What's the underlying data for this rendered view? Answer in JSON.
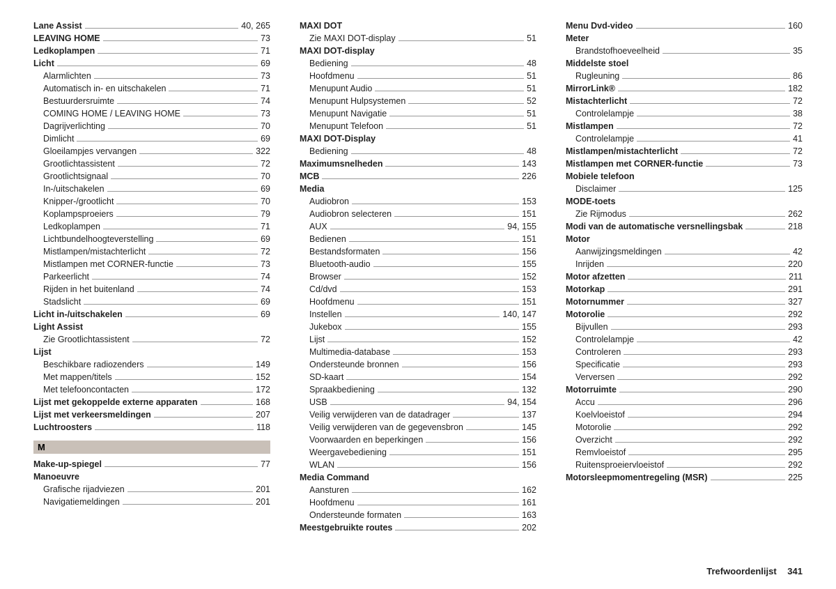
{
  "footer": {
    "title": "Trefwoordenlijst",
    "page": "341"
  },
  "section_letter": "M",
  "columns": [
    [
      {
        "t": "e",
        "l": "Lane Assist",
        "p": "40, 265",
        "b": 1
      },
      {
        "t": "e",
        "l": "LEAVING HOME",
        "p": "73",
        "b": 1
      },
      {
        "t": "e",
        "l": "Ledkoplampen",
        "p": "71",
        "b": 1
      },
      {
        "t": "e",
        "l": "Licht",
        "p": "69",
        "b": 1
      },
      {
        "t": "e",
        "l": "Alarmlichten",
        "p": "73",
        "s": 1
      },
      {
        "t": "e",
        "l": "Automatisch in- en uitschakelen",
        "p": "71",
        "s": 1
      },
      {
        "t": "e",
        "l": "Bestuurdersruimte",
        "p": "74",
        "s": 1
      },
      {
        "t": "e",
        "l": "COMING HOME / LEAVING HOME",
        "p": "73",
        "s": 1
      },
      {
        "t": "e",
        "l": "Dagrijverlichting",
        "p": "70",
        "s": 1
      },
      {
        "t": "e",
        "l": "Dimlicht",
        "p": "69",
        "s": 1
      },
      {
        "t": "e",
        "l": "Gloeilampjes vervangen",
        "p": "322",
        "s": 1
      },
      {
        "t": "e",
        "l": "Grootlichtassistent",
        "p": "72",
        "s": 1
      },
      {
        "t": "e",
        "l": "Grootlichtsignaal",
        "p": "70",
        "s": 1
      },
      {
        "t": "e",
        "l": "In-/uitschakelen",
        "p": "69",
        "s": 1
      },
      {
        "t": "e",
        "l": "Knipper-/grootlicht",
        "p": "70",
        "s": 1
      },
      {
        "t": "e",
        "l": "Koplampsproeiers",
        "p": "79",
        "s": 1
      },
      {
        "t": "e",
        "l": "Ledkoplampen",
        "p": "71",
        "s": 1
      },
      {
        "t": "e",
        "l": "Lichtbundelhoogteverstelling",
        "p": "69",
        "s": 1
      },
      {
        "t": "e",
        "l": "Mistlampen/mistachterlicht",
        "p": "72",
        "s": 1
      },
      {
        "t": "e",
        "l": "Mistlampen met CORNER-functie",
        "p": "73",
        "s": 1
      },
      {
        "t": "e",
        "l": "Parkeerlicht",
        "p": "74",
        "s": 1
      },
      {
        "t": "e",
        "l": "Rijden in het buitenland",
        "p": "74",
        "s": 1
      },
      {
        "t": "e",
        "l": "Stadslicht",
        "p": "69",
        "s": 1
      },
      {
        "t": "e",
        "l": "Licht in-/uitschakelen",
        "p": "69",
        "b": 1
      },
      {
        "t": "h",
        "l": "Light Assist"
      },
      {
        "t": "e",
        "l": "Zie Grootlichtassistent",
        "p": "72",
        "s": 1
      },
      {
        "t": "h",
        "l": "Lijst"
      },
      {
        "t": "e",
        "l": "Beschikbare radiozenders",
        "p": "149",
        "s": 1
      },
      {
        "t": "e",
        "l": "Met mappen/titels",
        "p": "152",
        "s": 1
      },
      {
        "t": "e",
        "l": "Met telefooncontacten",
        "p": "172",
        "s": 1
      },
      {
        "t": "e",
        "l": "Lijst met gekoppelde externe apparaten",
        "p": "168",
        "b": 1
      },
      {
        "t": "e",
        "l": "Lijst met verkeersmeldingen",
        "p": "207",
        "b": 1
      },
      {
        "t": "e",
        "l": "Luchtroosters",
        "p": "118",
        "b": 1
      },
      {
        "t": "letter"
      },
      {
        "t": "e",
        "l": "Make-up-spiegel",
        "p": "77",
        "b": 1
      },
      {
        "t": "h",
        "l": "Manoeuvre"
      },
      {
        "t": "e",
        "l": "Grafische rijadviezen",
        "p": "201",
        "s": 1
      },
      {
        "t": "e",
        "l": "Navigatiemeldingen",
        "p": "201",
        "s": 1
      }
    ],
    [
      {
        "t": "h",
        "l": "MAXI DOT"
      },
      {
        "t": "e",
        "l": "Zie MAXI DOT-display",
        "p": "51",
        "s": 1
      },
      {
        "t": "h",
        "l": "MAXI DOT-display"
      },
      {
        "t": "e",
        "l": "Bediening",
        "p": "48",
        "s": 1
      },
      {
        "t": "e",
        "l": "Hoofdmenu",
        "p": "51",
        "s": 1
      },
      {
        "t": "e",
        "l": "Menupunt Audio",
        "p": "51",
        "s": 1
      },
      {
        "t": "e",
        "l": "Menupunt Hulpsystemen",
        "p": "52",
        "s": 1
      },
      {
        "t": "e",
        "l": "Menupunt Navigatie",
        "p": "51",
        "s": 1
      },
      {
        "t": "e",
        "l": "Menupunt Telefoon",
        "p": "51",
        "s": 1
      },
      {
        "t": "h",
        "l": "MAXI DOT-Display"
      },
      {
        "t": "e",
        "l": "Bediening",
        "p": "48",
        "s": 1
      },
      {
        "t": "e",
        "l": "Maximumsnelheden",
        "p": "143",
        "b": 1
      },
      {
        "t": "e",
        "l": "MCB",
        "p": "226",
        "b": 1
      },
      {
        "t": "h",
        "l": "Media"
      },
      {
        "t": "e",
        "l": "Audiobron",
        "p": "153",
        "s": 1
      },
      {
        "t": "e",
        "l": "Audiobron selecteren",
        "p": "151",
        "s": 1
      },
      {
        "t": "e",
        "l": "AUX",
        "p": "94, 155",
        "s": 1
      },
      {
        "t": "e",
        "l": "Bedienen",
        "p": "151",
        "s": 1
      },
      {
        "t": "e",
        "l": "Bestandsformaten",
        "p": "156",
        "s": 1
      },
      {
        "t": "e",
        "l": "Bluetooth-audio",
        "p": "155",
        "s": 1
      },
      {
        "t": "e",
        "l": "Browser",
        "p": "152",
        "s": 1
      },
      {
        "t": "e",
        "l": "Cd/dvd",
        "p": "153",
        "s": 1
      },
      {
        "t": "e",
        "l": "Hoofdmenu",
        "p": "151",
        "s": 1
      },
      {
        "t": "e",
        "l": "Instellen",
        "p": "140, 147",
        "s": 1
      },
      {
        "t": "e",
        "l": "Jukebox",
        "p": "155",
        "s": 1
      },
      {
        "t": "e",
        "l": "Lijst",
        "p": "152",
        "s": 1
      },
      {
        "t": "e",
        "l": "Multimedia-database",
        "p": "153",
        "s": 1
      },
      {
        "t": "e",
        "l": "Ondersteunde bronnen",
        "p": "156",
        "s": 1
      },
      {
        "t": "e",
        "l": "SD-kaart",
        "p": "154",
        "s": 1
      },
      {
        "t": "e",
        "l": "Spraakbediening",
        "p": "132",
        "s": 1
      },
      {
        "t": "e",
        "l": "USB",
        "p": "94, 154",
        "s": 1
      },
      {
        "t": "e",
        "l": "Veilig verwijderen van de datadrager",
        "p": "137",
        "s": 1
      },
      {
        "t": "e",
        "l": "Veilig verwijderen van de gegevensbron",
        "p": "145",
        "s": 1
      },
      {
        "t": "e",
        "l": "Voorwaarden en beperkingen",
        "p": "156",
        "s": 1
      },
      {
        "t": "e",
        "l": "Weergavebediening",
        "p": "151",
        "s": 1
      },
      {
        "t": "e",
        "l": "WLAN",
        "p": "156",
        "s": 1
      },
      {
        "t": "h",
        "l": "Media Command"
      },
      {
        "t": "e",
        "l": "Aansturen",
        "p": "162",
        "s": 1
      },
      {
        "t": "e",
        "l": "Hoofdmenu",
        "p": "161",
        "s": 1
      },
      {
        "t": "e",
        "l": "Ondersteunde formaten",
        "p": "163",
        "s": 1
      },
      {
        "t": "e",
        "l": "Meestgebruikte routes",
        "p": "202",
        "b": 1
      }
    ],
    [
      {
        "t": "e",
        "l": "Menu Dvd-video",
        "p": "160",
        "b": 1
      },
      {
        "t": "h",
        "l": "Meter"
      },
      {
        "t": "e",
        "l": "Brandstofhoeveelheid",
        "p": "35",
        "s": 1
      },
      {
        "t": "h",
        "l": "Middelste stoel"
      },
      {
        "t": "e",
        "l": "Rugleuning",
        "p": "86",
        "s": 1
      },
      {
        "t": "e",
        "l": "MirrorLink®",
        "p": "182",
        "b": 1
      },
      {
        "t": "e",
        "l": "Mistachterlicht",
        "p": "72",
        "b": 1
      },
      {
        "t": "e",
        "l": "Controlelampje",
        "p": "38",
        "s": 1
      },
      {
        "t": "e",
        "l": "Mistlampen",
        "p": "72",
        "b": 1
      },
      {
        "t": "e",
        "l": "Controlelampje",
        "p": "41",
        "s": 1
      },
      {
        "t": "e",
        "l": "Mistlampen/mistachterlicht",
        "p": "72",
        "b": 1
      },
      {
        "t": "e",
        "l": "Mistlampen met CORNER-functie",
        "p": "73",
        "b": 1
      },
      {
        "t": "h",
        "l": "Mobiele telefoon"
      },
      {
        "t": "e",
        "l": "Disclaimer",
        "p": "125",
        "s": 1
      },
      {
        "t": "h",
        "l": "MODE-toets"
      },
      {
        "t": "e",
        "l": "Zie Rijmodus",
        "p": "262",
        "s": 1
      },
      {
        "t": "e",
        "l": "Modi van de automatische versnellingsbak",
        "p": "218",
        "b": 1
      },
      {
        "t": "h",
        "l": "Motor"
      },
      {
        "t": "e",
        "l": "Aanwijzingsmeldingen",
        "p": "42",
        "s": 1
      },
      {
        "t": "e",
        "l": "Inrijden",
        "p": "220",
        "s": 1
      },
      {
        "t": "e",
        "l": "Motor afzetten",
        "p": "211",
        "b": 1
      },
      {
        "t": "e",
        "l": "Motorkap",
        "p": "291",
        "b": 1
      },
      {
        "t": "e",
        "l": "Motornummer",
        "p": "327",
        "b": 1
      },
      {
        "t": "e",
        "l": "Motorolie",
        "p": "292",
        "b": 1
      },
      {
        "t": "e",
        "l": "Bijvullen",
        "p": "293",
        "s": 1
      },
      {
        "t": "e",
        "l": "Controlelampje",
        "p": "42",
        "s": 1
      },
      {
        "t": "e",
        "l": "Controleren",
        "p": "293",
        "s": 1
      },
      {
        "t": "e",
        "l": "Specificatie",
        "p": "293",
        "s": 1
      },
      {
        "t": "e",
        "l": "Verversen",
        "p": "292",
        "s": 1
      },
      {
        "t": "e",
        "l": "Motorruimte",
        "p": "290",
        "b": 1
      },
      {
        "t": "e",
        "l": "Accu",
        "p": "296",
        "s": 1
      },
      {
        "t": "e",
        "l": "Koelvloeistof",
        "p": "294",
        "s": 1
      },
      {
        "t": "e",
        "l": "Motorolie",
        "p": "292",
        "s": 1
      },
      {
        "t": "e",
        "l": "Overzicht",
        "p": "292",
        "s": 1
      },
      {
        "t": "e",
        "l": "Remvloeistof",
        "p": "295",
        "s": 1
      },
      {
        "t": "e",
        "l": "Ruitensproeiervloeistof",
        "p": "292",
        "s": 1
      },
      {
        "t": "e",
        "l": "Motorsleepmomentregeling (MSR)",
        "p": "225",
        "b": 1
      }
    ]
  ]
}
